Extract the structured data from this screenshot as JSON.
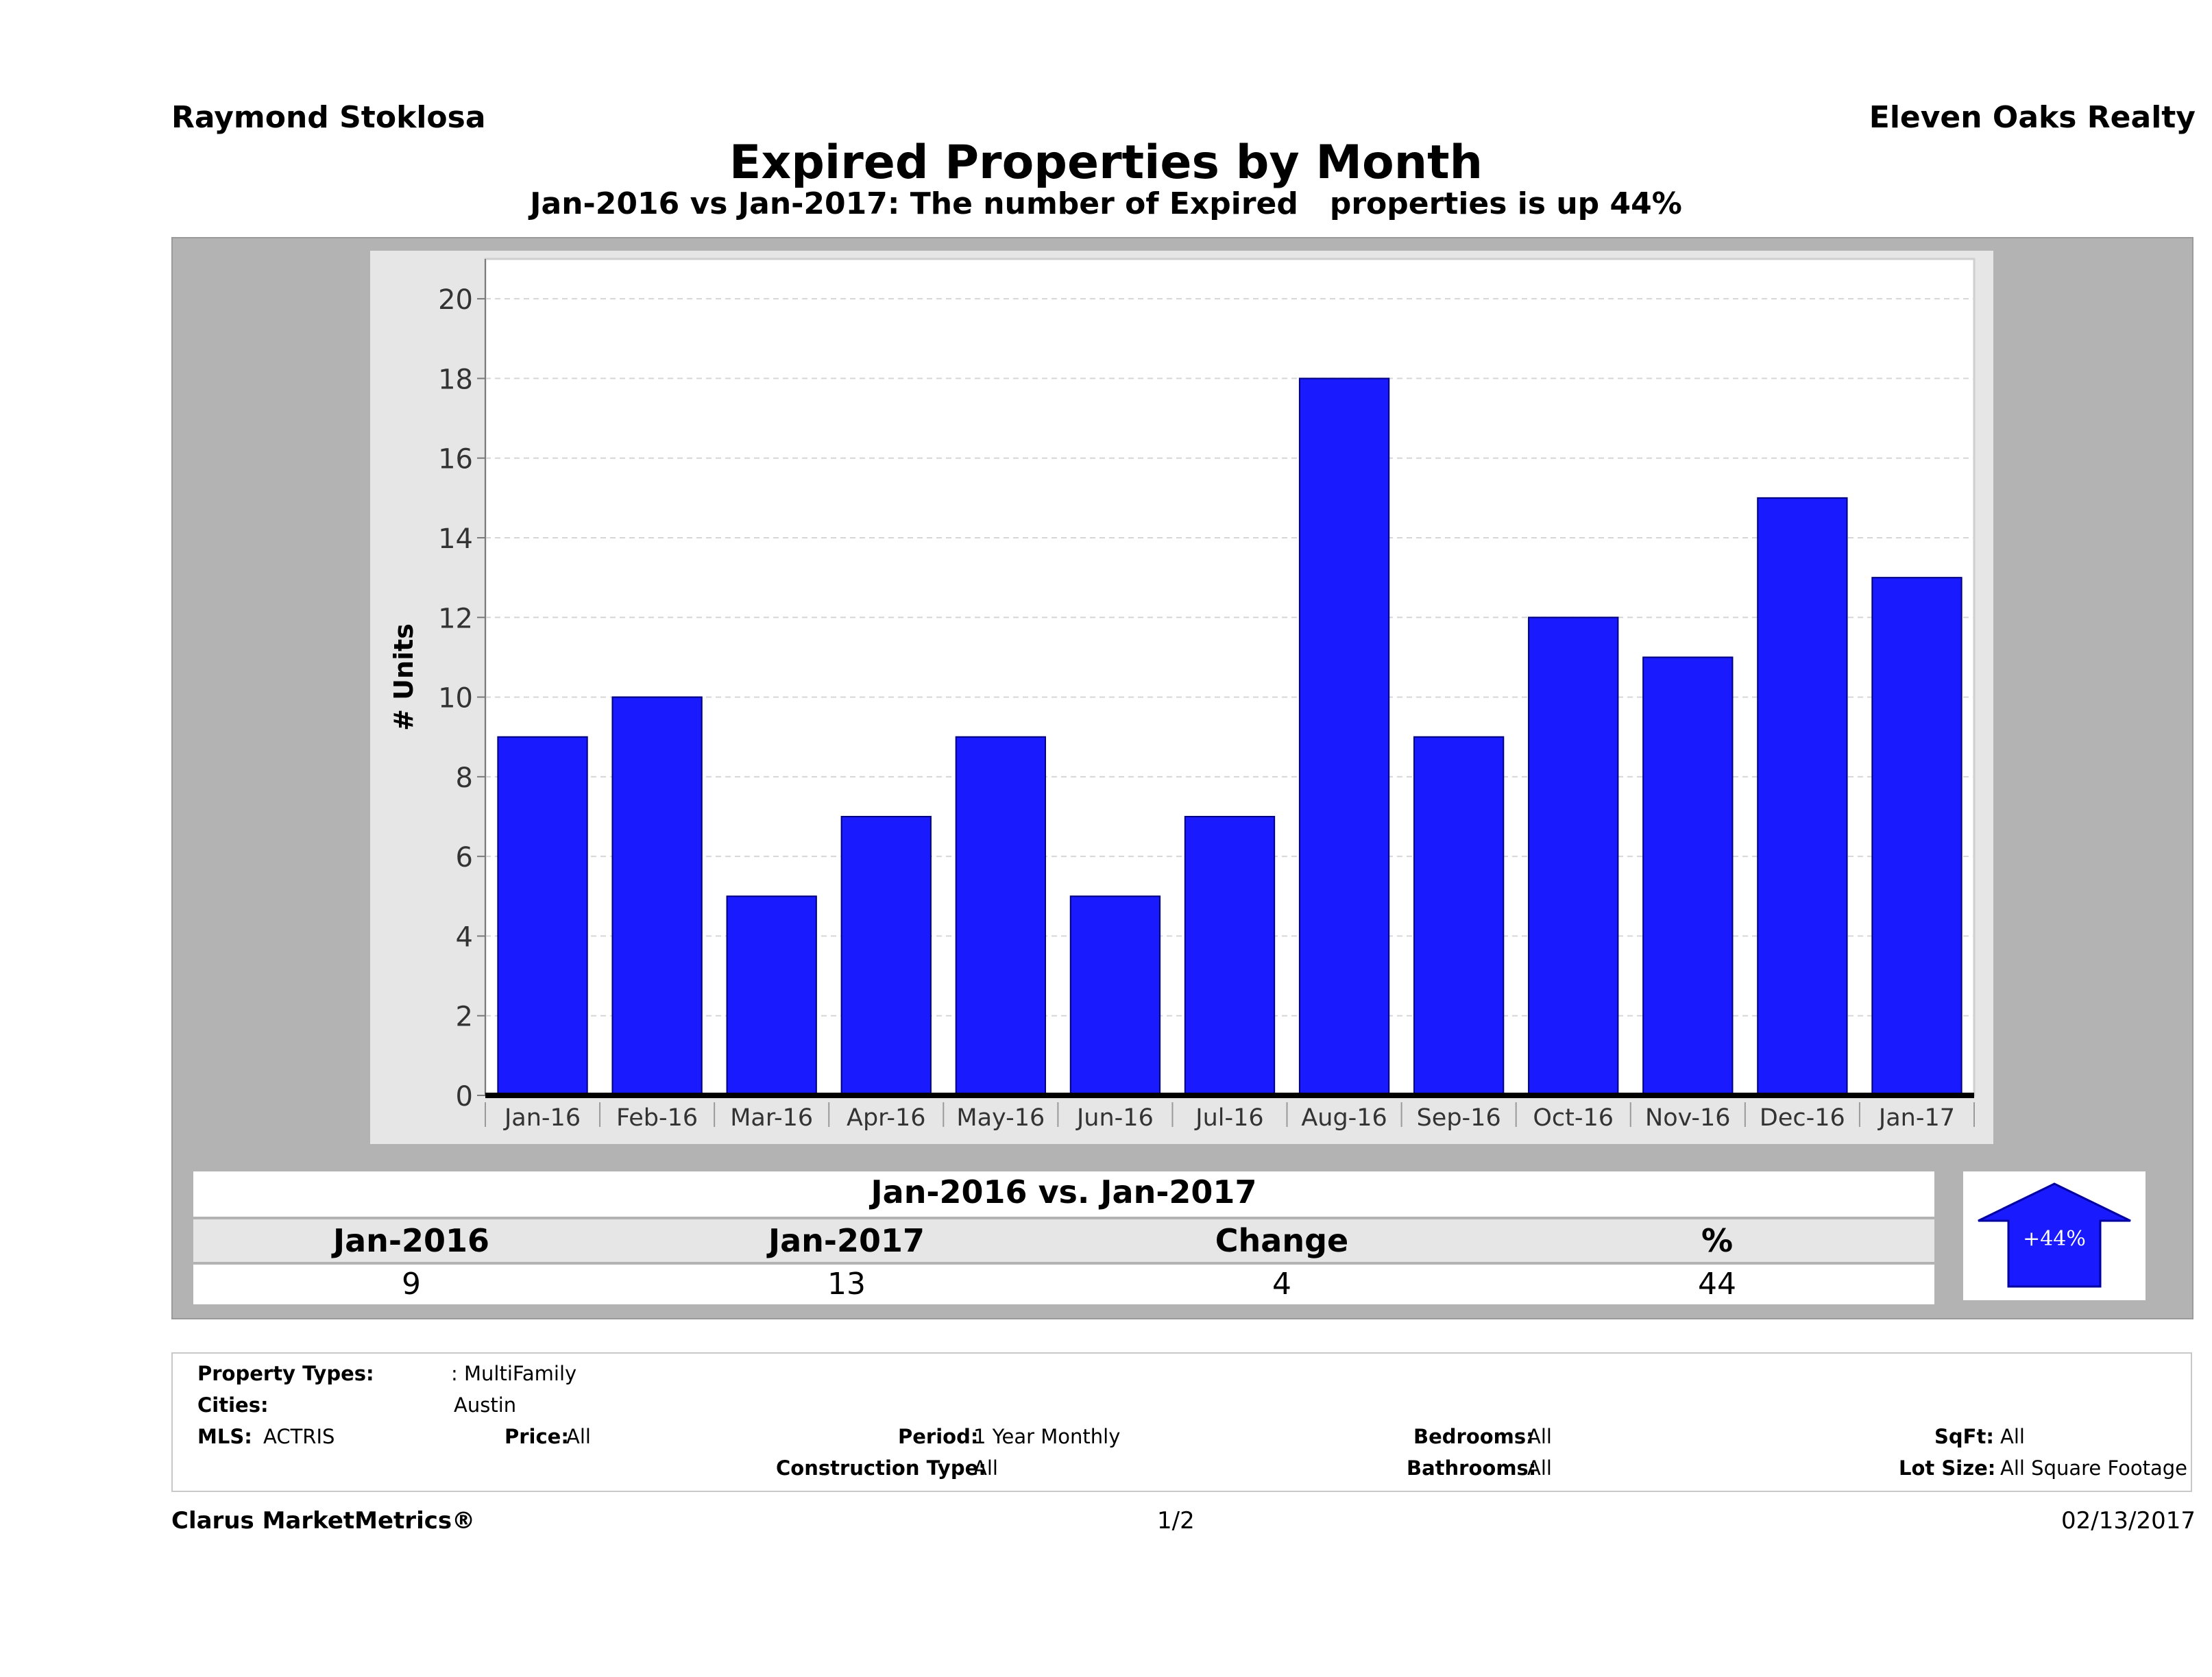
{
  "header": {
    "agent": "Raymond Stoklosa",
    "company": "Eleven Oaks Realty",
    "title": "Expired Properties by Month",
    "subtitle": "Jan-2016 vs Jan-2017: The number of Expired   properties is up 44%"
  },
  "chart_data": {
    "type": "bar",
    "categories": [
      "Jan-16",
      "Feb-16",
      "Mar-16",
      "Apr-16",
      "May-16",
      "Jun-16",
      "Jul-16",
      "Aug-16",
      "Sep-16",
      "Oct-16",
      "Nov-16",
      "Dec-16",
      "Jan-17"
    ],
    "values": [
      9,
      10,
      5,
      7,
      9,
      5,
      7,
      18,
      9,
      12,
      11,
      15,
      13
    ],
    "ylabel": "# Units",
    "ylim": [
      0,
      21
    ],
    "yticks": [
      0,
      2,
      4,
      6,
      8,
      10,
      12,
      14,
      16,
      18,
      20
    ],
    "grid": true,
    "bar_color": "#1a1aff"
  },
  "comparison": {
    "title": "Jan-2016 vs. Jan-2017",
    "headers": [
      "Jan-2016",
      "Jan-2017",
      "Change",
      "%"
    ],
    "values": [
      "9",
      "13",
      "4",
      "44"
    ],
    "badge": "+44%",
    "badge_color": "#1a1aff"
  },
  "details": {
    "property_types_label": "Property Types:",
    "property_types_value": ": MultiFamily",
    "cities_label": "Cities:",
    "cities_value": "Austin",
    "mls_label": "MLS:",
    "mls_value": "ACTRIS",
    "price_label": "Price:",
    "price_value": "All",
    "period_label": "Period:",
    "period_value": "1 Year Monthly",
    "construction_label": "Construction Type:",
    "construction_value": "All",
    "bedrooms_label": "Bedrooms:",
    "bedrooms_value": "All",
    "bathrooms_label": "Bathrooms:",
    "bathrooms_value": "All",
    "sqft_label": "SqFt:",
    "sqft_value": "All",
    "lot_label": "Lot Size:",
    "lot_value": "All Square Footage"
  },
  "footer": {
    "brand": "Clarus MarketMetrics®",
    "page": "1/2",
    "date": "02/13/2017"
  }
}
